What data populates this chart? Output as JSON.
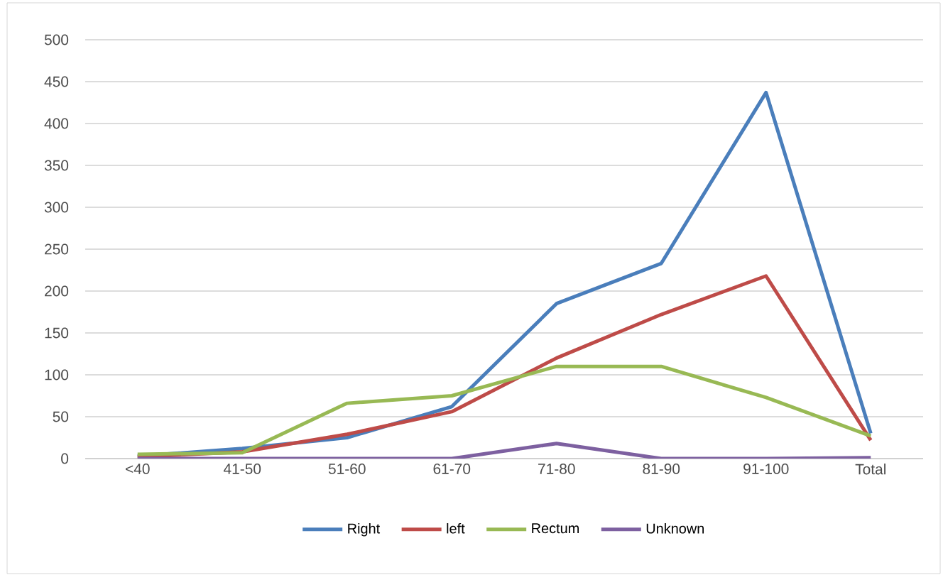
{
  "chart_data": {
    "type": "line",
    "categories": [
      "<40",
      "41-50",
      "51-60",
      "61-70",
      "71-80",
      "81-90",
      "91-100",
      "Total"
    ],
    "series": [
      {
        "name": "Right",
        "color": "#4a7ebb",
        "values": [
          3,
          12,
          25,
          62,
          185,
          233,
          437,
          30
        ]
      },
      {
        "name": "left",
        "color": "#be4b48",
        "values": [
          2,
          8,
          29,
          56,
          120,
          172,
          218,
          22
        ]
      },
      {
        "name": "Rectum",
        "color": "#98b954",
        "values": [
          5,
          7,
          66,
          75,
          110,
          110,
          73,
          27
        ]
      },
      {
        "name": "Unknown",
        "color": "#7d60a0",
        "values": [
          0,
          0,
          0,
          0,
          18,
          0,
          0,
          1
        ]
      }
    ],
    "ylim": [
      0,
      500
    ],
    "yticks": [
      0,
      50,
      100,
      150,
      200,
      250,
      300,
      350,
      400,
      450,
      500
    ],
    "grid": "y",
    "legend": "bottom",
    "marker": "none",
    "line_style": "solid"
  }
}
